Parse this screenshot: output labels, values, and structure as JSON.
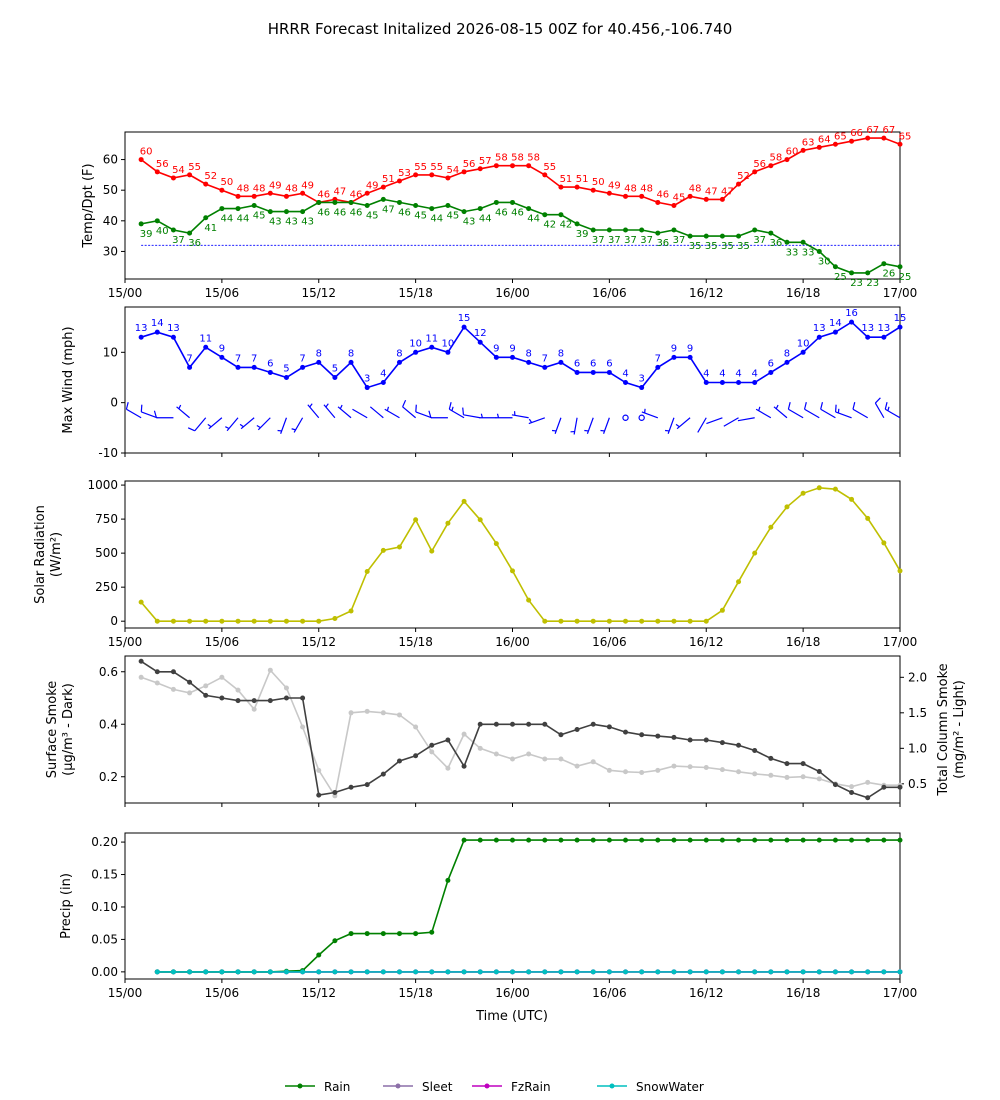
{
  "title": "HRRR Forecast Initalized 2026-08-15 00Z for 40.456,-106.740",
  "x_axis": {
    "label": "Time (UTC)",
    "ticks": [
      "15/00",
      "15/06",
      "15/12",
      "15/18",
      "16/00",
      "16/06",
      "16/12",
      "16/18",
      "17/00"
    ]
  },
  "legend": [
    "Rain",
    "Sleet",
    "FzRain",
    "SnowWater"
  ],
  "colors": {
    "temp": "#ff0000",
    "dewpoint": "#008000",
    "freezing_line": "#0000ff",
    "wind": "#0000ff",
    "solar": "#bfbf00",
    "smoke_surface": "#404040",
    "smoke_column": "#c8c8c8",
    "rain": "#008000",
    "sleet": "#8c6fa8",
    "fzrain": "#bf00bf",
    "snowwater": "#00bfbf"
  },
  "chart_data": [
    {
      "type": "line",
      "ylabel": "Temp/Dpt (F)",
      "yticks": [
        30,
        40,
        50,
        60
      ],
      "ylim": [
        21,
        69
      ],
      "x_hours": [
        1,
        2,
        3,
        4,
        5,
        6,
        7,
        8,
        9,
        10,
        11,
        12,
        13,
        14,
        15,
        16,
        17,
        18,
        19,
        20,
        21,
        22,
        23,
        24,
        25,
        26,
        27,
        28,
        29,
        30,
        31,
        32,
        33,
        34,
        35,
        36,
        37,
        38,
        39,
        40,
        41,
        42,
        43,
        44,
        45,
        46,
        47,
        48
      ],
      "freezing_line": 32,
      "series": [
        {
          "values": [
            60,
            56,
            54,
            55,
            52,
            50,
            48,
            48,
            49,
            48,
            49,
            46,
            47,
            46,
            49,
            51,
            53,
            55,
            55,
            54,
            56,
            57,
            58,
            58,
            58,
            55,
            51,
            51,
            50,
            49,
            48,
            48,
            46,
            45,
            48,
            47,
            47,
            52,
            56,
            58,
            60,
            63,
            64,
            65,
            66,
            67,
            67,
            65
          ]
        },
        {
          "values": [
            39,
            40,
            37,
            36,
            41,
            44,
            44,
            45,
            43,
            43,
            43,
            46,
            46,
            46,
            45,
            47,
            46,
            45,
            44,
            45,
            43,
            44,
            46,
            46,
            44,
            42,
            42,
            39,
            37,
            37,
            37,
            37,
            36,
            37,
            35,
            35,
            35,
            35,
            37,
            36,
            33,
            33,
            30,
            25,
            23,
            23,
            26,
            25
          ]
        }
      ]
    },
    {
      "type": "line",
      "ylabel": "Max Wind (mph)",
      "yticks": [
        -10,
        0,
        10
      ],
      "ylim": [
        -10,
        19
      ],
      "x_hours": [
        1,
        2,
        3,
        4,
        5,
        6,
        7,
        8,
        9,
        10,
        11,
        12,
        13,
        14,
        15,
        16,
        17,
        18,
        19,
        20,
        21,
        22,
        23,
        24,
        25,
        26,
        27,
        28,
        29,
        30,
        31,
        32,
        33,
        34,
        35,
        36,
        37,
        38,
        39,
        40,
        41,
        42,
        43,
        44,
        45,
        46,
        47,
        48
      ],
      "series": [
        {
          "values": [
            13,
            14,
            13,
            7,
            11,
            9,
            7,
            7,
            6,
            5,
            7,
            8,
            5,
            8,
            3,
            4,
            8,
            10,
            11,
            10,
            15,
            12,
            9,
            9,
            8,
            7,
            8,
            6,
            6,
            6,
            4,
            3,
            7,
            9,
            9,
            4,
            4,
            4,
            4,
            6,
            8,
            10,
            13,
            14,
            16,
            13,
            13,
            15
          ]
        }
      ],
      "barb_dirs": [
        300,
        290,
        270,
        310,
        220,
        230,
        220,
        230,
        225,
        200,
        210,
        320,
        320,
        310,
        300,
        310,
        300,
        310,
        290,
        270,
        300,
        280,
        270,
        270,
        280,
        250,
        200,
        190,
        200,
        200,
        0,
        0,
        290,
        200,
        230,
        210,
        250,
        240,
        260,
        300,
        310,
        300,
        300,
        300,
        290,
        300,
        330,
        300
      ]
    },
    {
      "type": "line",
      "ylabel": "Solar Radiation (W/m²)",
      "yticks": [
        0,
        250,
        500,
        750,
        1000
      ],
      "ylim": [
        -50,
        1030
      ],
      "x_hours": [
        1,
        2,
        3,
        4,
        5,
        6,
        7,
        8,
        9,
        10,
        11,
        12,
        13,
        14,
        15,
        16,
        17,
        18,
        19,
        20,
        21,
        22,
        23,
        24,
        25,
        26,
        27,
        28,
        29,
        30,
        31,
        32,
        33,
        34,
        35,
        36,
        37,
        38,
        39,
        40,
        41,
        42,
        43,
        44,
        45,
        46,
        47,
        48
      ],
      "series": [
        {
          "values": [
            140,
            0,
            0,
            0,
            0,
            0,
            0,
            0,
            0,
            0,
            0,
            0,
            20,
            75,
            365,
            520,
            545,
            745,
            515,
            720,
            880,
            745,
            570,
            370,
            155,
            0,
            0,
            0,
            0,
            0,
            0,
            0,
            0,
            0,
            0,
            0,
            80,
            290,
            500,
            690,
            840,
            940,
            980,
            970,
            895,
            755,
            575,
            370
          ]
        }
      ]
    },
    {
      "type": "line",
      "ylabel": "Surface Smoke (µg/m³ - Dark)",
      "ylabel2": "Total Column Smoke (mg/m² - Light)",
      "yticks": [
        0.2,
        0.4,
        0.6
      ],
      "yticks2": [
        0.5,
        1.0,
        1.5,
        2.0
      ],
      "ylim": [
        0.1,
        0.66
      ],
      "ylim2": [
        0.23,
        2.3
      ],
      "x_hours": [
        1,
        2,
        3,
        4,
        5,
        6,
        7,
        8,
        9,
        10,
        11,
        12,
        13,
        14,
        15,
        16,
        17,
        18,
        19,
        20,
        21,
        22,
        23,
        24,
        25,
        26,
        27,
        28,
        29,
        30,
        31,
        32,
        33,
        34,
        35,
        36,
        37,
        38,
        39,
        40,
        41,
        42,
        43,
        44,
        45,
        46,
        47,
        48
      ],
      "series": [
        {
          "axis": 1,
          "values": [
            0.64,
            0.6,
            0.6,
            0.56,
            0.51,
            0.5,
            0.49,
            0.49,
            0.49,
            0.5,
            0.5,
            0.13,
            0.14,
            0.16,
            0.17,
            0.21,
            0.26,
            0.28,
            0.32,
            0.34,
            0.24,
            0.4,
            0.4,
            0.4,
            0.4,
            0.4,
            0.36,
            0.38,
            0.4,
            0.39,
            0.37,
            0.36,
            0.355,
            0.35,
            0.34,
            0.34,
            0.33,
            0.32,
            0.3,
            0.27,
            0.25,
            0.25,
            0.22,
            0.17,
            0.14,
            0.12,
            0.16,
            0.16
          ]
        },
        {
          "axis": 2,
          "values": [
            2.0,
            1.92,
            1.83,
            1.78,
            1.88,
            2.0,
            1.82,
            1.55,
            2.1,
            1.85,
            1.3,
            0.69,
            0.33,
            1.5,
            1.52,
            1.5,
            1.47,
            1.3,
            0.95,
            0.72,
            1.2,
            1.0,
            0.92,
            0.85,
            0.92,
            0.85,
            0.85,
            0.75,
            0.81,
            0.69,
            0.67,
            0.66,
            0.69,
            0.75,
            0.74,
            0.73,
            0.7,
            0.67,
            0.64,
            0.62,
            0.59,
            0.6,
            0.57,
            0.5,
            0.46,
            0.52,
            0.48,
            0.48
          ]
        }
      ]
    },
    {
      "type": "line",
      "ylabel": "Precip (in)",
      "yticks": [
        0.0,
        0.05,
        0.1,
        0.15,
        0.2
      ],
      "ylim": [
        -0.011,
        0.214
      ],
      "x_hours": [
        2,
        3,
        4,
        5,
        6,
        7,
        8,
        9,
        10,
        11,
        12,
        13,
        14,
        15,
        16,
        17,
        18,
        19,
        20,
        21,
        22,
        23,
        24,
        25,
        26,
        27,
        28,
        29,
        30,
        31,
        32,
        33,
        34,
        35,
        36,
        37,
        38,
        39,
        40,
        41,
        42,
        43,
        44,
        45,
        46,
        47,
        48
      ],
      "series": [
        {
          "name": "Rain",
          "values": [
            0,
            0,
            0,
            0,
            0,
            0,
            0,
            0,
            0.001,
            0.002,
            0.026,
            0.048,
            0.059,
            0.059,
            0.059,
            0.059,
            0.059,
            0.061,
            0.141,
            0.203,
            0.203,
            0.203,
            0.203,
            0.203,
            0.203,
            0.203,
            0.203,
            0.203,
            0.203,
            0.203,
            0.203,
            0.203,
            0.203,
            0.203,
            0.203,
            0.203,
            0.203,
            0.203,
            0.203,
            0.203,
            0.203,
            0.203,
            0.203,
            0.203,
            0.203,
            0.203,
            0.203
          ]
        },
        {
          "name": "Sleet",
          "values": [
            0,
            0,
            0,
            0,
            0,
            0,
            0,
            0,
            0,
            0,
            0,
            0,
            0,
            0,
            0,
            0,
            0,
            0,
            0,
            0,
            0,
            0,
            0,
            0,
            0,
            0,
            0,
            0,
            0,
            0,
            0,
            0,
            0,
            0,
            0,
            0,
            0,
            0,
            0,
            0,
            0,
            0,
            0,
            0,
            0,
            0,
            0
          ]
        },
        {
          "name": "FzRain",
          "values": [
            0,
            0,
            0,
            0,
            0,
            0,
            0,
            0,
            0,
            0,
            0,
            0,
            0,
            0,
            0,
            0,
            0,
            0,
            0,
            0,
            0,
            0,
            0,
            0,
            0,
            0,
            0,
            0,
            0,
            0,
            0,
            0,
            0,
            0,
            0,
            0,
            0,
            0,
            0,
            0,
            0,
            0,
            0,
            0,
            0,
            0,
            0
          ]
        },
        {
          "name": "SnowWater",
          "values": [
            0,
            0,
            0,
            0,
            0,
            0,
            0,
            0,
            0,
            0,
            0,
            0,
            0,
            0,
            0,
            0,
            0,
            0,
            0,
            0,
            0,
            0,
            0,
            0,
            0,
            0,
            0,
            0,
            0,
            0,
            0,
            0,
            0,
            0,
            0,
            0,
            0,
            0,
            0,
            0,
            0,
            0,
            0,
            0,
            0,
            0,
            0
          ]
        }
      ]
    }
  ]
}
